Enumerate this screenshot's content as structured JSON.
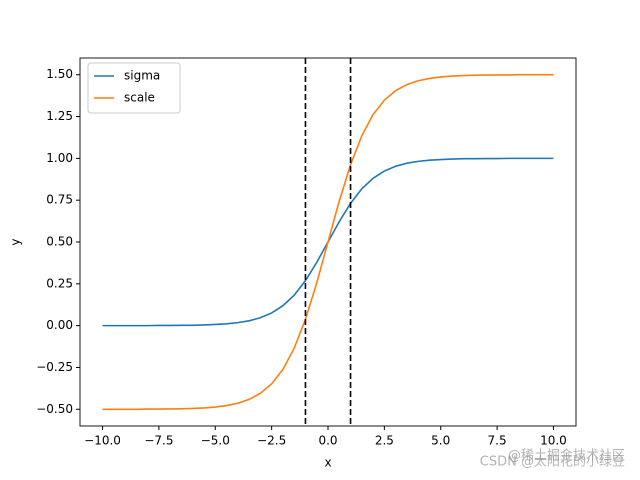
{
  "chart_data": {
    "type": "line",
    "xlabel": "x",
    "ylabel": "y",
    "x": [
      -10,
      -9.5,
      -9,
      -8.5,
      -8,
      -7.5,
      -7,
      -6.5,
      -6,
      -5.5,
      -5,
      -4.5,
      -4,
      -3.5,
      -3,
      -2.5,
      -2,
      -1.5,
      -1,
      -0.5,
      0,
      0.5,
      1,
      1.5,
      2,
      2.5,
      3,
      3.5,
      4,
      4.5,
      5,
      5.5,
      6,
      6.5,
      7,
      7.5,
      8,
      8.5,
      9,
      9.5,
      10
    ],
    "series": [
      {
        "name": "sigma",
        "color": "#1f77b4",
        "values": [
          0,
          0,
          0,
          0,
          0,
          0.001,
          0.001,
          0.002,
          0.002,
          0.004,
          0.007,
          0.011,
          0.018,
          0.029,
          0.047,
          0.076,
          0.119,
          0.182,
          0.269,
          0.378,
          0.5,
          0.622,
          0.731,
          0.818,
          0.881,
          0.924,
          0.953,
          0.971,
          0.982,
          0.989,
          0.993,
          0.996,
          0.998,
          0.998,
          0.999,
          0.999,
          1,
          1,
          1,
          1,
          1
        ]
      },
      {
        "name": "scale",
        "color": "#ff7f0e",
        "values": [
          -0.5,
          -0.5,
          -0.5,
          -0.5,
          -0.499,
          -0.499,
          -0.498,
          -0.497,
          -0.495,
          -0.492,
          -0.487,
          -0.478,
          -0.464,
          -0.441,
          -0.405,
          -0.348,
          -0.262,
          -0.135,
          0.038,
          0.255,
          0.5,
          0.745,
          0.962,
          1.135,
          1.262,
          1.348,
          1.405,
          1.441,
          1.464,
          1.478,
          1.487,
          1.492,
          1.495,
          1.497,
          1.498,
          1.499,
          1.499,
          1.5,
          1.5,
          1.5,
          1.5
        ]
      }
    ],
    "vlines": [
      -1,
      1
    ],
    "xlim": [
      -11,
      11
    ],
    "ylim": [
      -0.6,
      1.6
    ],
    "xticks": [
      {
        "value": -10,
        "label": "−10.0"
      },
      {
        "value": -7.5,
        "label": "−7.5"
      },
      {
        "value": -5,
        "label": "−5.0"
      },
      {
        "value": -2.5,
        "label": "−2.5"
      },
      {
        "value": 0,
        "label": "0.0"
      },
      {
        "value": 2.5,
        "label": "2.5"
      },
      {
        "value": 5,
        "label": "5.0"
      },
      {
        "value": 7.5,
        "label": "7.5"
      },
      {
        "value": 10,
        "label": "10.0"
      }
    ],
    "yticks": [
      {
        "value": -0.5,
        "label": "−0.50"
      },
      {
        "value": -0.25,
        "label": "−0.25"
      },
      {
        "value": 0,
        "label": "0.00"
      },
      {
        "value": 0.25,
        "label": "0.25"
      },
      {
        "value": 0.5,
        "label": "0.50"
      },
      {
        "value": 0.75,
        "label": "0.75"
      },
      {
        "value": 1,
        "label": "1.00"
      },
      {
        "value": 1.25,
        "label": "1.25"
      },
      {
        "value": 1.5,
        "label": "1.50"
      }
    ],
    "legend": "upper left",
    "watermark": "CSDN @太阳花的小绿豆",
    "watermark2": "@稀土掘金技术社区"
  }
}
